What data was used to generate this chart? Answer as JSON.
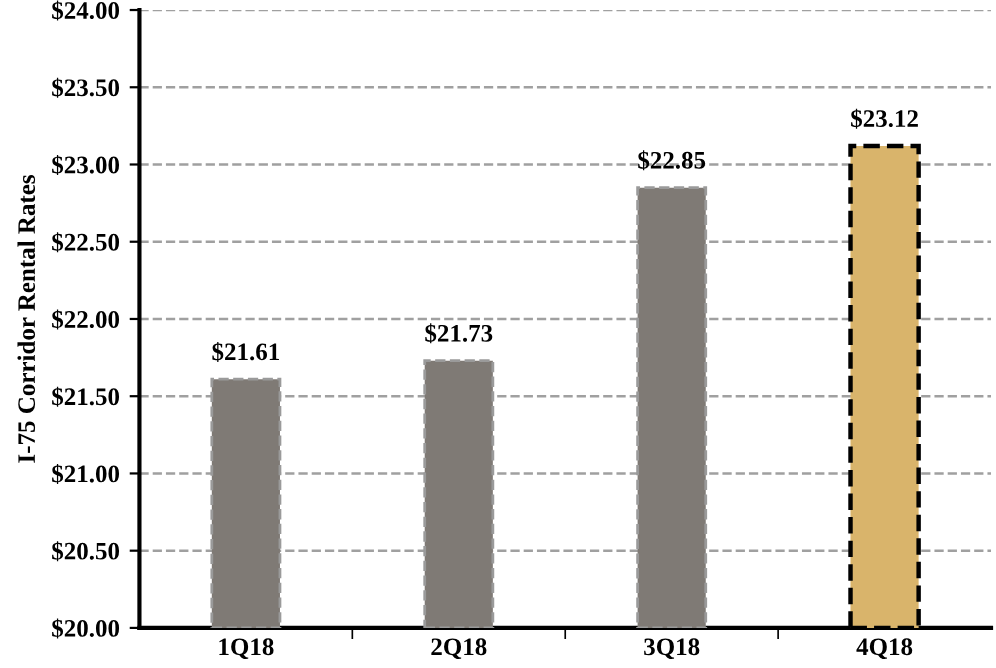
{
  "chart_data": {
    "type": "bar",
    "ylabel": "I-75 Corridor Rental Rates",
    "categories": [
      "1Q18",
      "2Q18",
      "3Q18",
      "4Q18"
    ],
    "values": [
      21.61,
      21.73,
      22.85,
      23.12
    ],
    "colors": [
      "#7f7a75",
      "#7f7a75",
      "#7f7a75",
      "#d9b46b"
    ],
    "value_labels": [
      "$21.61",
      "$21.73",
      "$22.85",
      "$23.12"
    ],
    "ylim": [
      20,
      24
    ],
    "yticks": [
      {
        "value": 20,
        "label": "$20.00"
      },
      {
        "value": 20.5,
        "label": "$20.50"
      },
      {
        "value": 21,
        "label": "$21.00"
      },
      {
        "value": 21.5,
        "label": "$21.50"
      },
      {
        "value": 22,
        "label": "$22.00"
      },
      {
        "value": 22.5,
        "label": "$22.50"
      },
      {
        "value": 23,
        "label": "$23.00"
      },
      {
        "value": 23.5,
        "label": "$23.50"
      },
      {
        "value": 24,
        "label": "$24.00"
      }
    ],
    "grid": "y",
    "legend": false
  }
}
